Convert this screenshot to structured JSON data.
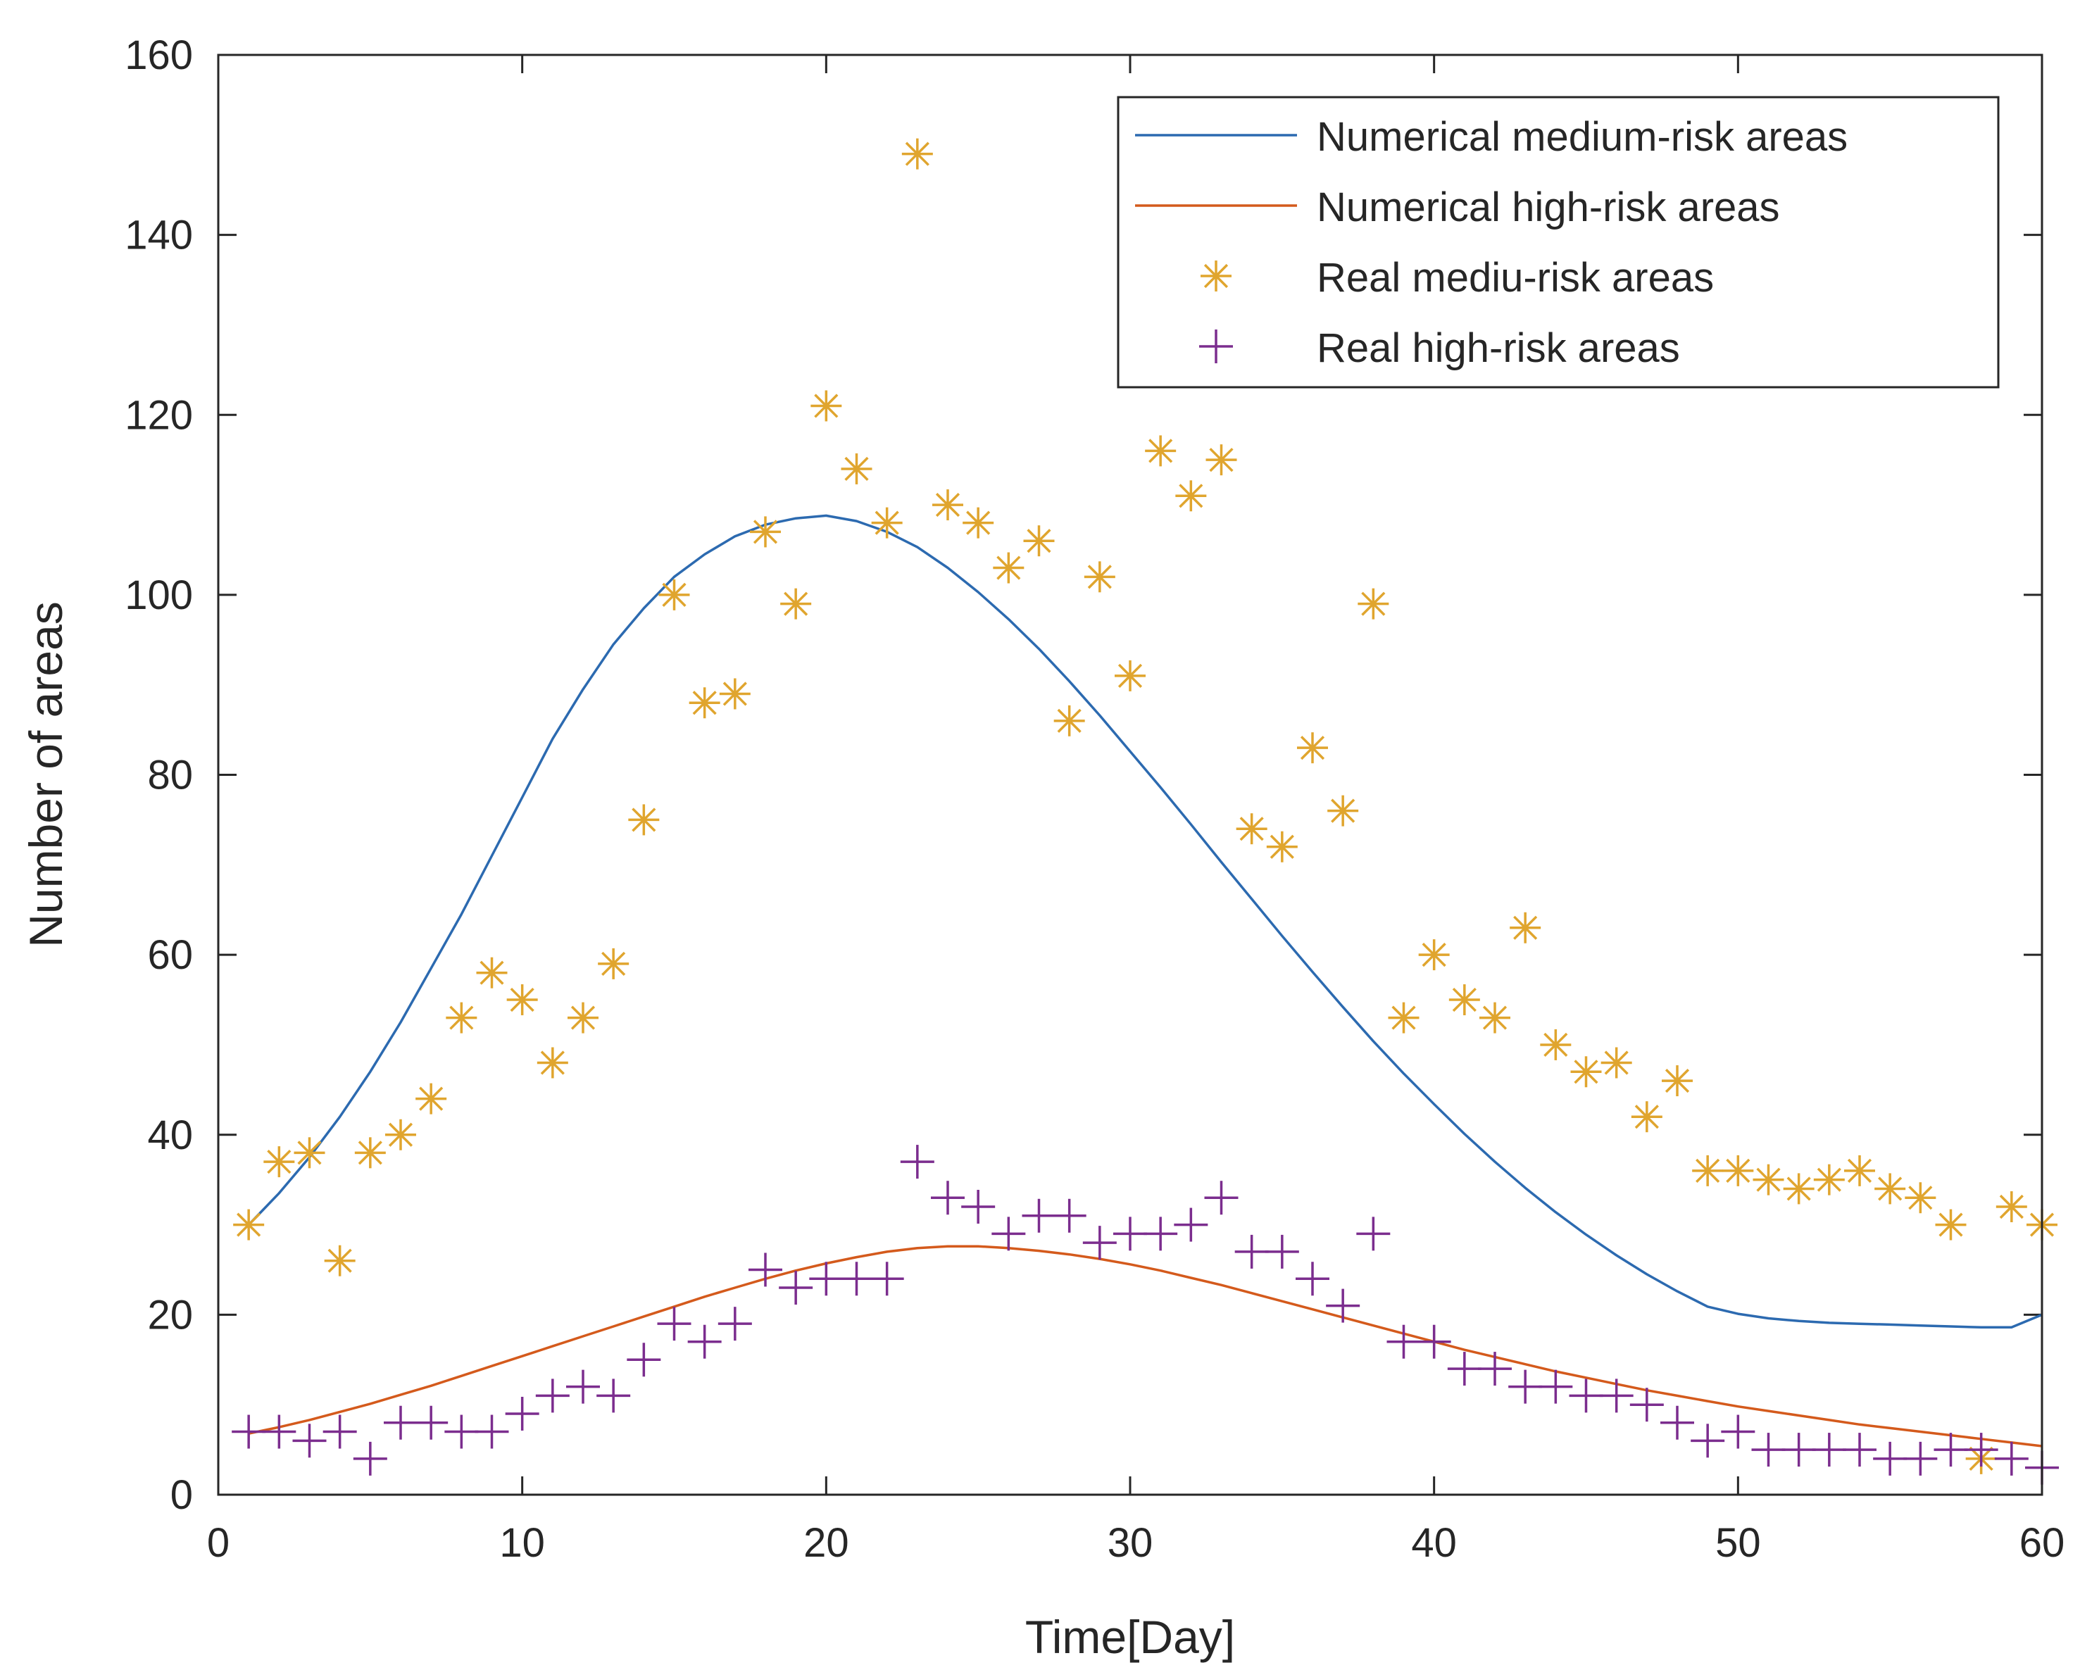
{
  "chart_data": {
    "type": "line",
    "title": "",
    "xlabel": "Time[Day]",
    "ylabel": "Number of areas",
    "xlim": [
      0,
      60
    ],
    "ylim": [
      0,
      160
    ],
    "xticks": [
      0,
      10,
      20,
      30,
      40,
      50,
      60
    ],
    "yticks": [
      0,
      20,
      40,
      60,
      80,
      100,
      120,
      140,
      160
    ],
    "legend_position": "top-right",
    "grid": false,
    "series": [
      {
        "name": "Numerical medium-risk areas",
        "kind": "line",
        "color": "#2C6AB0",
        "x": [
          1,
          2,
          3,
          4,
          5,
          6,
          7,
          8,
          9,
          10,
          11,
          12,
          13,
          14,
          15,
          16,
          17,
          18,
          19,
          20,
          21,
          22,
          23,
          24,
          25,
          26,
          27,
          28,
          29,
          30,
          31,
          32,
          33,
          34,
          35,
          36,
          37,
          38,
          39,
          40,
          41,
          42,
          43,
          44,
          45,
          46,
          47,
          48,
          49,
          50,
          51,
          52,
          53,
          54,
          55,
          56,
          57,
          58,
          59,
          60
        ],
        "y": [
          30,
          33.5,
          37.5,
          42,
          47,
          52.5,
          58.5,
          64.5,
          71,
          77.5,
          84,
          89.5,
          94.5,
          98.5,
          102,
          104.5,
          106.5,
          107.8,
          108.5,
          108.8,
          108.2,
          107,
          105.3,
          103,
          100.3,
          97.3,
          94,
          90.4,
          86.6,
          82.6,
          78.6,
          74.5,
          70.3,
          66.2,
          62.1,
          58.1,
          54.2,
          50.4,
          46.8,
          43.4,
          40.1,
          37,
          34.1,
          31.4,
          28.9,
          26.6,
          24.5,
          22.6,
          20.9,
          20.1,
          19.6,
          19.3,
          19.1,
          19,
          18.9,
          18.8,
          18.7,
          18.6,
          18.6,
          20
        ]
      },
      {
        "name": "Numerical high-risk areas",
        "kind": "line",
        "color": "#D45A1C",
        "x": [
          1,
          2,
          3,
          4,
          5,
          6,
          7,
          8,
          9,
          10,
          11,
          12,
          13,
          14,
          15,
          16,
          17,
          18,
          19,
          20,
          21,
          22,
          23,
          24,
          25,
          26,
          27,
          28,
          29,
          30,
          31,
          32,
          33,
          34,
          35,
          36,
          37,
          38,
          39,
          40,
          41,
          42,
          43,
          44,
          45,
          46,
          47,
          48,
          49,
          50,
          51,
          52,
          53,
          54,
          55,
          56,
          57,
          58,
          59,
          60
        ],
        "y": [
          6.8,
          7.5,
          8.3,
          9.2,
          10.1,
          11.1,
          12.1,
          13.2,
          14.3,
          15.4,
          16.5,
          17.6,
          18.7,
          19.8,
          20.9,
          22,
          23,
          24,
          24.9,
          25.7,
          26.4,
          27,
          27.4,
          27.6,
          27.6,
          27.4,
          27.1,
          26.7,
          26.2,
          25.6,
          24.9,
          24.1,
          23.3,
          22.4,
          21.5,
          20.6,
          19.7,
          18.8,
          17.9,
          17,
          16.1,
          15.3,
          14.5,
          13.7,
          13,
          12.3,
          11.6,
          11,
          10.4,
          9.8,
          9.3,
          8.8,
          8.3,
          7.8,
          7.4,
          7,
          6.6,
          6.2,
          5.8,
          5.4
        ]
      },
      {
        "name": "Real mediu-risk areas",
        "kind": "scatter",
        "marker": "asterisk",
        "color": "#E0A52E",
        "x": [
          1,
          2,
          3,
          4,
          5,
          6,
          7,
          8,
          9,
          10,
          11,
          12,
          13,
          14,
          15,
          16,
          17,
          18,
          19,
          20,
          21,
          22,
          23,
          24,
          25,
          26,
          27,
          28,
          29,
          30,
          31,
          32,
          33,
          34,
          35,
          36,
          37,
          38,
          39,
          40,
          41,
          42,
          43,
          44,
          45,
          46,
          47,
          48,
          49,
          50,
          51,
          52,
          53,
          54,
          55,
          56,
          57,
          58,
          59,
          60
        ],
        "y": [
          30,
          37,
          38,
          26,
          38,
          40,
          44,
          53,
          58,
          55,
          48,
          53,
          59,
          75,
          100,
          88,
          89,
          107,
          99,
          121,
          114,
          108,
          149,
          110,
          108,
          103,
          106,
          86,
          102,
          91,
          116,
          111,
          115,
          74,
          72,
          83,
          76,
          99,
          53,
          60,
          55,
          53,
          63,
          50,
          47,
          48,
          42,
          46,
          36,
          36,
          35,
          34,
          35,
          36,
          34,
          33,
          30,
          4,
          32,
          30
        ]
      },
      {
        "name": "Real  high-risk areas",
        "kind": "scatter",
        "marker": "plus",
        "color": "#7B2D8E",
        "x": [
          1,
          2,
          3,
          4,
          5,
          6,
          7,
          8,
          9,
          10,
          11,
          12,
          13,
          14,
          15,
          16,
          17,
          18,
          19,
          20,
          21,
          22,
          23,
          24,
          25,
          26,
          27,
          28,
          29,
          30,
          31,
          32,
          33,
          34,
          35,
          36,
          37,
          38,
          39,
          40,
          41,
          42,
          43,
          44,
          45,
          46,
          47,
          48,
          49,
          50,
          51,
          52,
          53,
          54,
          55,
          56,
          57,
          58,
          59,
          60
        ],
        "y": [
          7,
          7,
          6,
          7,
          4,
          8,
          8,
          7,
          7,
          9,
          11,
          12,
          11,
          15,
          19,
          17,
          19,
          25,
          23,
          24,
          24,
          24,
          37,
          33,
          32,
          29,
          31,
          31,
          28,
          29,
          29,
          30,
          33,
          27,
          27,
          24,
          21,
          29,
          17,
          17,
          14,
          14,
          12,
          12,
          11,
          11,
          10,
          8,
          6,
          7,
          5,
          5,
          5,
          5,
          4,
          4,
          5,
          5,
          4,
          3
        ]
      }
    ]
  }
}
